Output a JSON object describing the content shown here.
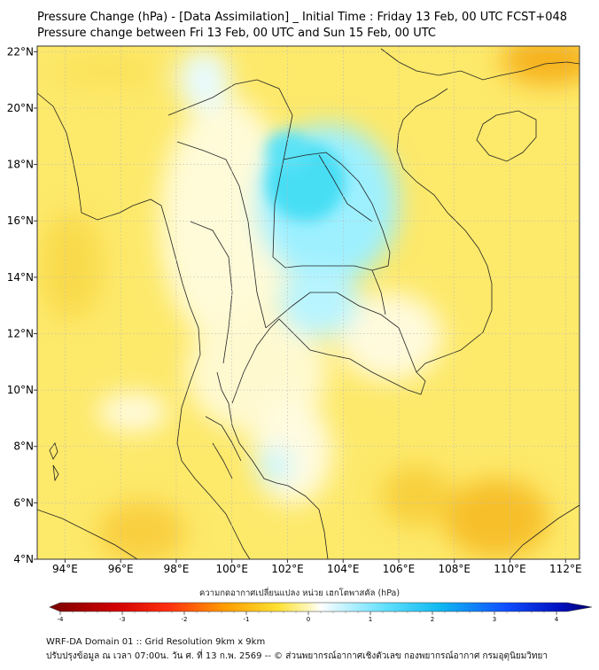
{
  "header": {
    "title_line1": "Pressure Change (hPa) - [Data Assimilation] _ Initial Time : Friday 13 Feb, 00 UTC FCST+048",
    "title_line2": "Pressure change between Fri 13 Feb, 00 UTC and Sun 15 Feb, 00 UTC"
  },
  "map": {
    "lon_range": [
      93,
      112.5
    ],
    "lat_range": [
      4,
      22.2
    ],
    "lon_ticks": [
      {
        "value": 94,
        "label": "94°E"
      },
      {
        "value": 96,
        "label": "96°E"
      },
      {
        "value": 98,
        "label": "98°E"
      },
      {
        "value": 100,
        "label": "100°E"
      },
      {
        "value": 102,
        "label": "102°E"
      },
      {
        "value": 104,
        "label": "104°E"
      },
      {
        "value": 106,
        "label": "106°E"
      },
      {
        "value": 108,
        "label": "108°E"
      },
      {
        "value": 110,
        "label": "110°E"
      },
      {
        "value": 112,
        "label": "112°E"
      }
    ],
    "lat_ticks": [
      {
        "value": 22,
        "label": "22°N"
      },
      {
        "value": 20,
        "label": "20°N"
      },
      {
        "value": 18,
        "label": "18°N"
      },
      {
        "value": 16,
        "label": "16°N"
      },
      {
        "value": 14,
        "label": "14°N"
      },
      {
        "value": 12,
        "label": "12°N"
      },
      {
        "value": 10,
        "label": "10°N"
      },
      {
        "value": 8,
        "label": "8°N"
      },
      {
        "value": 6,
        "label": "6°N"
      },
      {
        "value": 4,
        "label": "4°N"
      }
    ],
    "gridlines": true
  },
  "colorbar": {
    "label": "ความกดอากาศเปลี่ยนแปลง หน่วย เฮกโตพาสคัล (hPa)",
    "min": -4,
    "max": 4,
    "ticks": [
      {
        "value": -4,
        "label": "-4"
      },
      {
        "value": -3,
        "label": "-3"
      },
      {
        "value": -2,
        "label": "-2"
      },
      {
        "value": -1,
        "label": "-1"
      },
      {
        "value": 0,
        "label": "0"
      },
      {
        "value": 1,
        "label": "1"
      },
      {
        "value": 2,
        "label": "2"
      },
      {
        "value": 3,
        "label": "3"
      },
      {
        "value": 4,
        "label": "4"
      }
    ],
    "colors": {
      "neg_strong": "#7a0000",
      "neg_mid": "#ff2020",
      "neg_light": "#ffa500",
      "near_zero_neg": "#ffec60",
      "zero": "#ffffff",
      "near_zero_pos": "#c8f4ff",
      "pos_light": "#40d8ff",
      "pos_mid": "#1a60ff",
      "pos_strong": "#000080"
    }
  },
  "footer": {
    "line1": "WRF-DA Domain 01 :: Grid Resolution 9km x 9km",
    "line2": "ปรับปรุงข้อมูล ณ เวลา 07:00น. วัน ศ. ที่ 13 ก.พ. 2569 -- © ส่วนพยากรณ์อากาศเชิงตัวเลข กองพยากรณ์อากาศ กรมอุตุนิยมวิทยา"
  }
}
